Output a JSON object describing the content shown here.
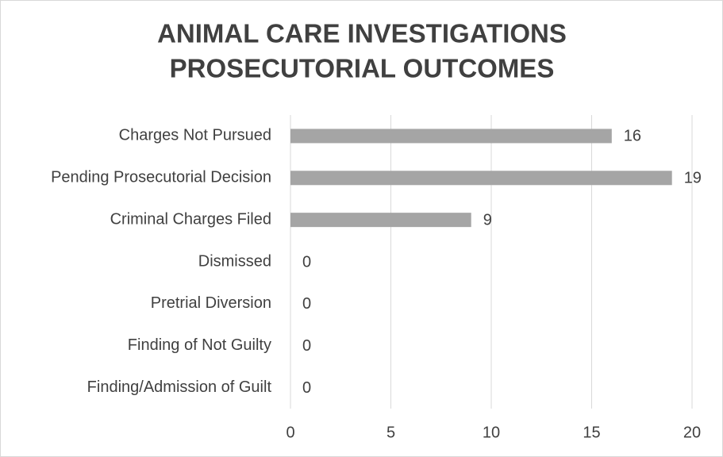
{
  "chart_data": {
    "type": "bar",
    "orientation": "horizontal",
    "title": [
      "ANIMAL CARE INVESTIGATIONS",
      "PROSECUTORIAL OUTCOMES"
    ],
    "categories": [
      "Charges Not Pursued",
      "Pending Prosecutorial Decision",
      "Criminal Charges Filed",
      "Dismissed",
      "Pretrial Diversion",
      "Finding of Not Guilty",
      "Finding/Admission of Guilt"
    ],
    "values": [
      16,
      19,
      9,
      0,
      0,
      0,
      0
    ],
    "color": "#a5a5a5",
    "xlim": [
      0,
      20
    ],
    "xticks": [
      0,
      5,
      10,
      15,
      20
    ],
    "grid": true
  }
}
